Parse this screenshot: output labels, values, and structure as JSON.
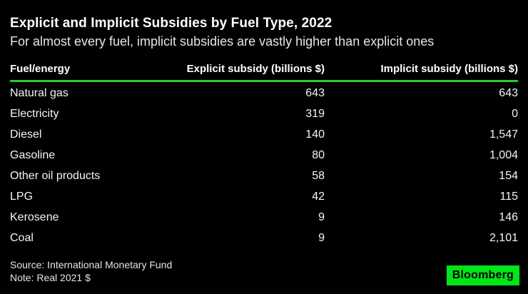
{
  "header": {
    "title": "Explicit and Implicit Subsidies by Fuel Type, 2022",
    "subtitle": "For almost every fuel, implicit subsidies are vastly higher than explicit ones"
  },
  "table": {
    "columns": [
      "Fuel/energy",
      "Explicit subsidy (billions $)",
      "Implicit subsidy (billions $)"
    ],
    "rows": [
      {
        "fuel": "Natural gas",
        "explicit": "643",
        "implicit": "643"
      },
      {
        "fuel": "Electricity",
        "explicit": "319",
        "implicit": "0"
      },
      {
        "fuel": "Diesel",
        "explicit": "140",
        "implicit": "1,547"
      },
      {
        "fuel": "Gasoline",
        "explicit": "80",
        "implicit": "1,004"
      },
      {
        "fuel": "Other oil products",
        "explicit": "58",
        "implicit": "154"
      },
      {
        "fuel": "LPG",
        "explicit": "42",
        "implicit": "115"
      },
      {
        "fuel": "Kerosene",
        "explicit": "9",
        "implicit": "146"
      },
      {
        "fuel": "Coal",
        "explicit": "9",
        "implicit": "2,101"
      }
    ]
  },
  "footer": {
    "source": "Source: International Monetary Fund",
    "note": "Note: Real 2021 $",
    "brand": "Bloomberg"
  },
  "colors": {
    "background": "#000000",
    "accent_green": "#2bc92b",
    "brand_green": "#00e619",
    "title_text": "#ffffff",
    "body_text": "#f5f5f5",
    "muted_text": "#e6e6e6"
  },
  "chart_data": {
    "type": "table",
    "title": "Explicit and Implicit Subsidies by Fuel Type, 2022",
    "subtitle": "For almost every fuel, implicit subsidies are vastly higher than explicit ones",
    "categories": [
      "Natural gas",
      "Electricity",
      "Diesel",
      "Gasoline",
      "Other oil products",
      "LPG",
      "Kerosene",
      "Coal"
    ],
    "series": [
      {
        "name": "Explicit subsidy (billions $)",
        "values": [
          643,
          319,
          140,
          80,
          58,
          42,
          9,
          9
        ]
      },
      {
        "name": "Implicit subsidy (billions $)",
        "values": [
          643,
          0,
          1547,
          1004,
          154,
          115,
          146,
          2101
        ]
      }
    ],
    "units": "billions $",
    "source": "International Monetary Fund",
    "note": "Real 2021 $"
  }
}
